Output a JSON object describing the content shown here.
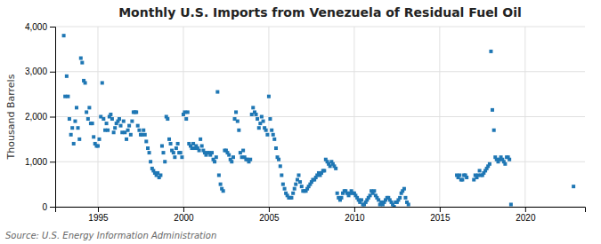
{
  "chart_data": {
    "type": "scatter",
    "title": "Monthly U.S. Imports from Venezuela of Residual Fuel Oil",
    "y_label": "Thousand Barrels",
    "annotations": [
      "Source: U.S. Energy Information Administration"
    ],
    "marker": "square",
    "grid": true,
    "xlim": [
      1992.5,
      2023.5
    ],
    "ylim": [
      0,
      4000
    ],
    "xticks": [
      1995,
      2000,
      2005,
      2010,
      2015,
      2020
    ],
    "yticks": [
      0,
      {
        "value": 1000,
        "label": "1,000"
      },
      {
        "value": 2000,
        "label": "2,000"
      },
      {
        "value": 3000,
        "label": "3,000"
      },
      {
        "value": 4000,
        "label": "4,000"
      }
    ],
    "x": [
      1993.0,
      1993.08,
      1993.17,
      1993.25,
      1993.33,
      1993.42,
      1993.5,
      1993.58,
      1993.67,
      1993.75,
      1993.83,
      1993.92,
      1994.0,
      1994.08,
      1994.17,
      1994.25,
      1994.33,
      1994.42,
      1994.5,
      1994.58,
      1994.67,
      1994.75,
      1994.83,
      1994.92,
      1995.0,
      1995.08,
      1995.17,
      1995.25,
      1995.33,
      1995.42,
      1995.5,
      1995.58,
      1995.67,
      1995.75,
      1995.83,
      1995.92,
      1996.0,
      1996.08,
      1996.17,
      1996.25,
      1996.33,
      1996.42,
      1996.5,
      1996.58,
      1996.67,
      1996.75,
      1996.83,
      1996.92,
      1997.0,
      1997.08,
      1997.17,
      1997.25,
      1997.33,
      1997.42,
      1997.5,
      1997.58,
      1997.67,
      1997.75,
      1997.83,
      1997.92,
      1998.0,
      1998.08,
      1998.17,
      1998.25,
      1998.33,
      1998.42,
      1998.5,
      1998.58,
      1998.67,
      1998.75,
      1998.83,
      1998.92,
      1999.0,
      1999.08,
      1999.17,
      1999.25,
      1999.33,
      1999.42,
      1999.5,
      1999.58,
      1999.67,
      1999.75,
      1999.83,
      1999.92,
      2000.0,
      2000.08,
      2000.17,
      2000.25,
      2000.33,
      2000.42,
      2000.5,
      2000.58,
      2000.67,
      2000.75,
      2000.83,
      2000.92,
      2001.0,
      2001.08,
      2001.17,
      2001.25,
      2001.33,
      2001.42,
      2001.5,
      2001.58,
      2001.67,
      2001.75,
      2001.83,
      2001.92,
      2002.0,
      2002.08,
      2002.17,
      2002.25,
      2002.33,
      2002.42,
      2002.5,
      2002.58,
      2002.67,
      2002.75,
      2002.83,
      2002.92,
      2003.0,
      2003.08,
      2003.17,
      2003.25,
      2003.33,
      2003.42,
      2003.5,
      2003.58,
      2003.67,
      2003.75,
      2003.83,
      2003.92,
      2004.0,
      2004.08,
      2004.17,
      2004.25,
      2004.33,
      2004.42,
      2004.5,
      2004.58,
      2004.67,
      2004.75,
      2004.83,
      2004.92,
      2005.0,
      2005.08,
      2005.17,
      2005.25,
      2005.33,
      2005.42,
      2005.5,
      2005.58,
      2005.67,
      2005.75,
      2005.83,
      2005.92,
      2006.0,
      2006.08,
      2006.17,
      2006.25,
      2006.33,
      2006.42,
      2006.5,
      2006.58,
      2006.67,
      2006.75,
      2006.83,
      2006.92,
      2007.0,
      2007.08,
      2007.17,
      2007.25,
      2007.33,
      2007.42,
      2007.5,
      2007.58,
      2007.67,
      2007.75,
      2007.83,
      2007.92,
      2008.0,
      2008.08,
      2008.17,
      2008.25,
      2008.33,
      2008.42,
      2008.5,
      2008.58,
      2008.67,
      2008.75,
      2008.83,
      2008.92,
      2009.0,
      2009.08,
      2009.17,
      2009.25,
      2009.33,
      2009.42,
      2009.5,
      2009.58,
      2009.67,
      2009.75,
      2009.83,
      2009.92,
      2010.0,
      2010.08,
      2010.17,
      2010.25,
      2010.33,
      2010.42,
      2010.5,
      2010.58,
      2010.67,
      2010.75,
      2010.83,
      2010.92,
      2011.0,
      2011.08,
      2011.17,
      2011.25,
      2011.33,
      2011.42,
      2011.5,
      2011.58,
      2011.67,
      2011.75,
      2011.83,
      2011.92,
      2012.0,
      2012.08,
      2012.17,
      2012.25,
      2012.33,
      2012.42,
      2012.5,
      2012.58,
      2012.67,
      2012.75,
      2012.83,
      2012.92,
      2013.0,
      2013.08,
      2013.17,
      2016.0,
      2016.08,
      2016.17,
      2016.25,
      2016.33,
      2016.42,
      2016.5,
      2016.58,
      2017.0,
      2017.08,
      2017.17,
      2017.25,
      2017.33,
      2017.42,
      2017.5,
      2017.58,
      2017.67,
      2017.75,
      2017.83,
      2017.92,
      2018.0,
      2018.08,
      2018.17,
      2018.25,
      2018.33,
      2018.42,
      2018.5,
      2018.58,
      2018.67,
      2018.75,
      2018.83,
      2018.92,
      2019.0,
      2019.08,
      2019.17,
      2022.83
    ],
    "values": [
      3800,
      2450,
      2900,
      2450,
      1950,
      1600,
      1750,
      1400,
      1900,
      2200,
      1750,
      1500,
      3300,
      3200,
      2800,
      2750,
      2100,
      1950,
      2200,
      1850,
      1850,
      1550,
      1400,
      1350,
      1350,
      1500,
      2000,
      2750,
      1950,
      1700,
      1850,
      1700,
      2000,
      2050,
      1950,
      1650,
      1750,
      1850,
      1900,
      1950,
      1800,
      1650,
      1900,
      1650,
      1500,
      1700,
      1800,
      1600,
      1900,
      2100,
      2100,
      2100,
      1800,
      1700,
      1600,
      1600,
      1700,
      1600,
      1450,
      1300,
      1200,
      1000,
      850,
      800,
      750,
      700,
      750,
      650,
      700,
      1350,
      1200,
      1000,
      2000,
      1950,
      1500,
      1400,
      1250,
      1200,
      1100,
      1300,
      1400,
      1200,
      1200,
      1100,
      2050,
      2100,
      1950,
      2100,
      1400,
      1350,
      1300,
      1400,
      1300,
      1350,
      1300,
      1250,
      1500,
      1350,
      1250,
      1200,
      1150,
      1200,
      1200,
      1150,
      1200,
      1050,
      1000,
      1100,
      2550,
      700,
      500,
      400,
      350,
      1250,
      1250,
      1200,
      1150,
      1050,
      1000,
      1100,
      1950,
      2100,
      1900,
      1700,
      1200,
      1100,
      1250,
      1100,
      1050,
      1050,
      1000,
      1050,
      2050,
      2200,
      2100,
      2050,
      1950,
      1750,
      1850,
      2000,
      1900,
      1750,
      1700,
      1600,
      2450,
      1950,
      1700,
      1600,
      1500,
      1300,
      1100,
      1050,
      900,
      700,
      500,
      400,
      300,
      250,
      200,
      200,
      200,
      300,
      400,
      500,
      600,
      700,
      550,
      450,
      350,
      350,
      350,
      400,
      450,
      500,
      550,
      600,
      600,
      650,
      700,
      750,
      700,
      750,
      800,
      800,
      1050,
      1000,
      950,
      900,
      1000,
      950,
      900,
      850,
      300,
      200,
      150,
      200,
      300,
      350,
      350,
      300,
      250,
      300,
      350,
      300,
      300,
      250,
      200,
      150,
      100,
      150,
      50,
      50,
      100,
      150,
      200,
      250,
      350,
      300,
      350,
      250,
      200,
      150,
      50,
      100,
      50,
      100,
      150,
      200,
      200,
      150,
      100,
      50,
      0,
      100,
      100,
      150,
      200,
      300,
      350,
      400,
      200,
      100,
      50,
      700,
      650,
      700,
      600,
      600,
      700,
      700,
      650,
      600,
      700,
      650,
      700,
      800,
      700,
      700,
      750,
      800,
      850,
      900,
      950,
      3450,
      2150,
      1700,
      1100,
      1050,
      1000,
      1050,
      1100,
      1050,
      1000,
      950,
      1100,
      1100,
      1050,
      50,
      450
    ]
  }
}
